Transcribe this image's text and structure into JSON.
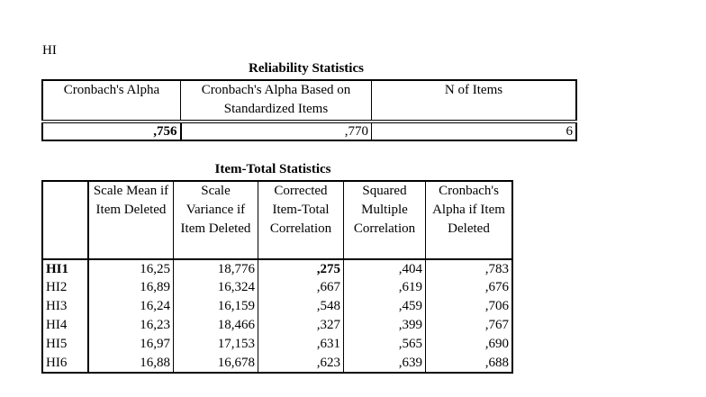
{
  "label": "HI",
  "reliability": {
    "title": "Reliability Statistics",
    "columns": [
      "Cronbach's Alpha",
      "Cronbach's Alpha Based on Standardized Items",
      "N of Items"
    ],
    "rows": [
      [
        ",756",
        ",770",
        "6"
      ]
    ]
  },
  "item_total": {
    "title": "Item-Total Statistics",
    "columns": [
      "Scale Mean if Item Deleted",
      "Scale Variance if Item Deleted",
      "Corrected Item-Total Correlation",
      "Squared Multiple Correlation",
      "Cronbach's Alpha if Item Deleted"
    ],
    "rows": [
      [
        "HI1",
        "16,25",
        "18,776",
        ",275",
        ",404",
        ",783"
      ],
      [
        "HI2",
        "16,89",
        "16,324",
        ",667",
        ",619",
        ",676"
      ],
      [
        "HI3",
        "16,24",
        "16,159",
        ",548",
        ",459",
        ",706"
      ],
      [
        "HI4",
        "16,23",
        "18,466",
        ",327",
        ",399",
        ",767"
      ],
      [
        "HI5",
        "16,97",
        "17,153",
        ",631",
        ",565",
        ",690"
      ],
      [
        "HI6",
        "16,88",
        "16,678",
        ",623",
        ",639",
        ",688"
      ]
    ]
  }
}
